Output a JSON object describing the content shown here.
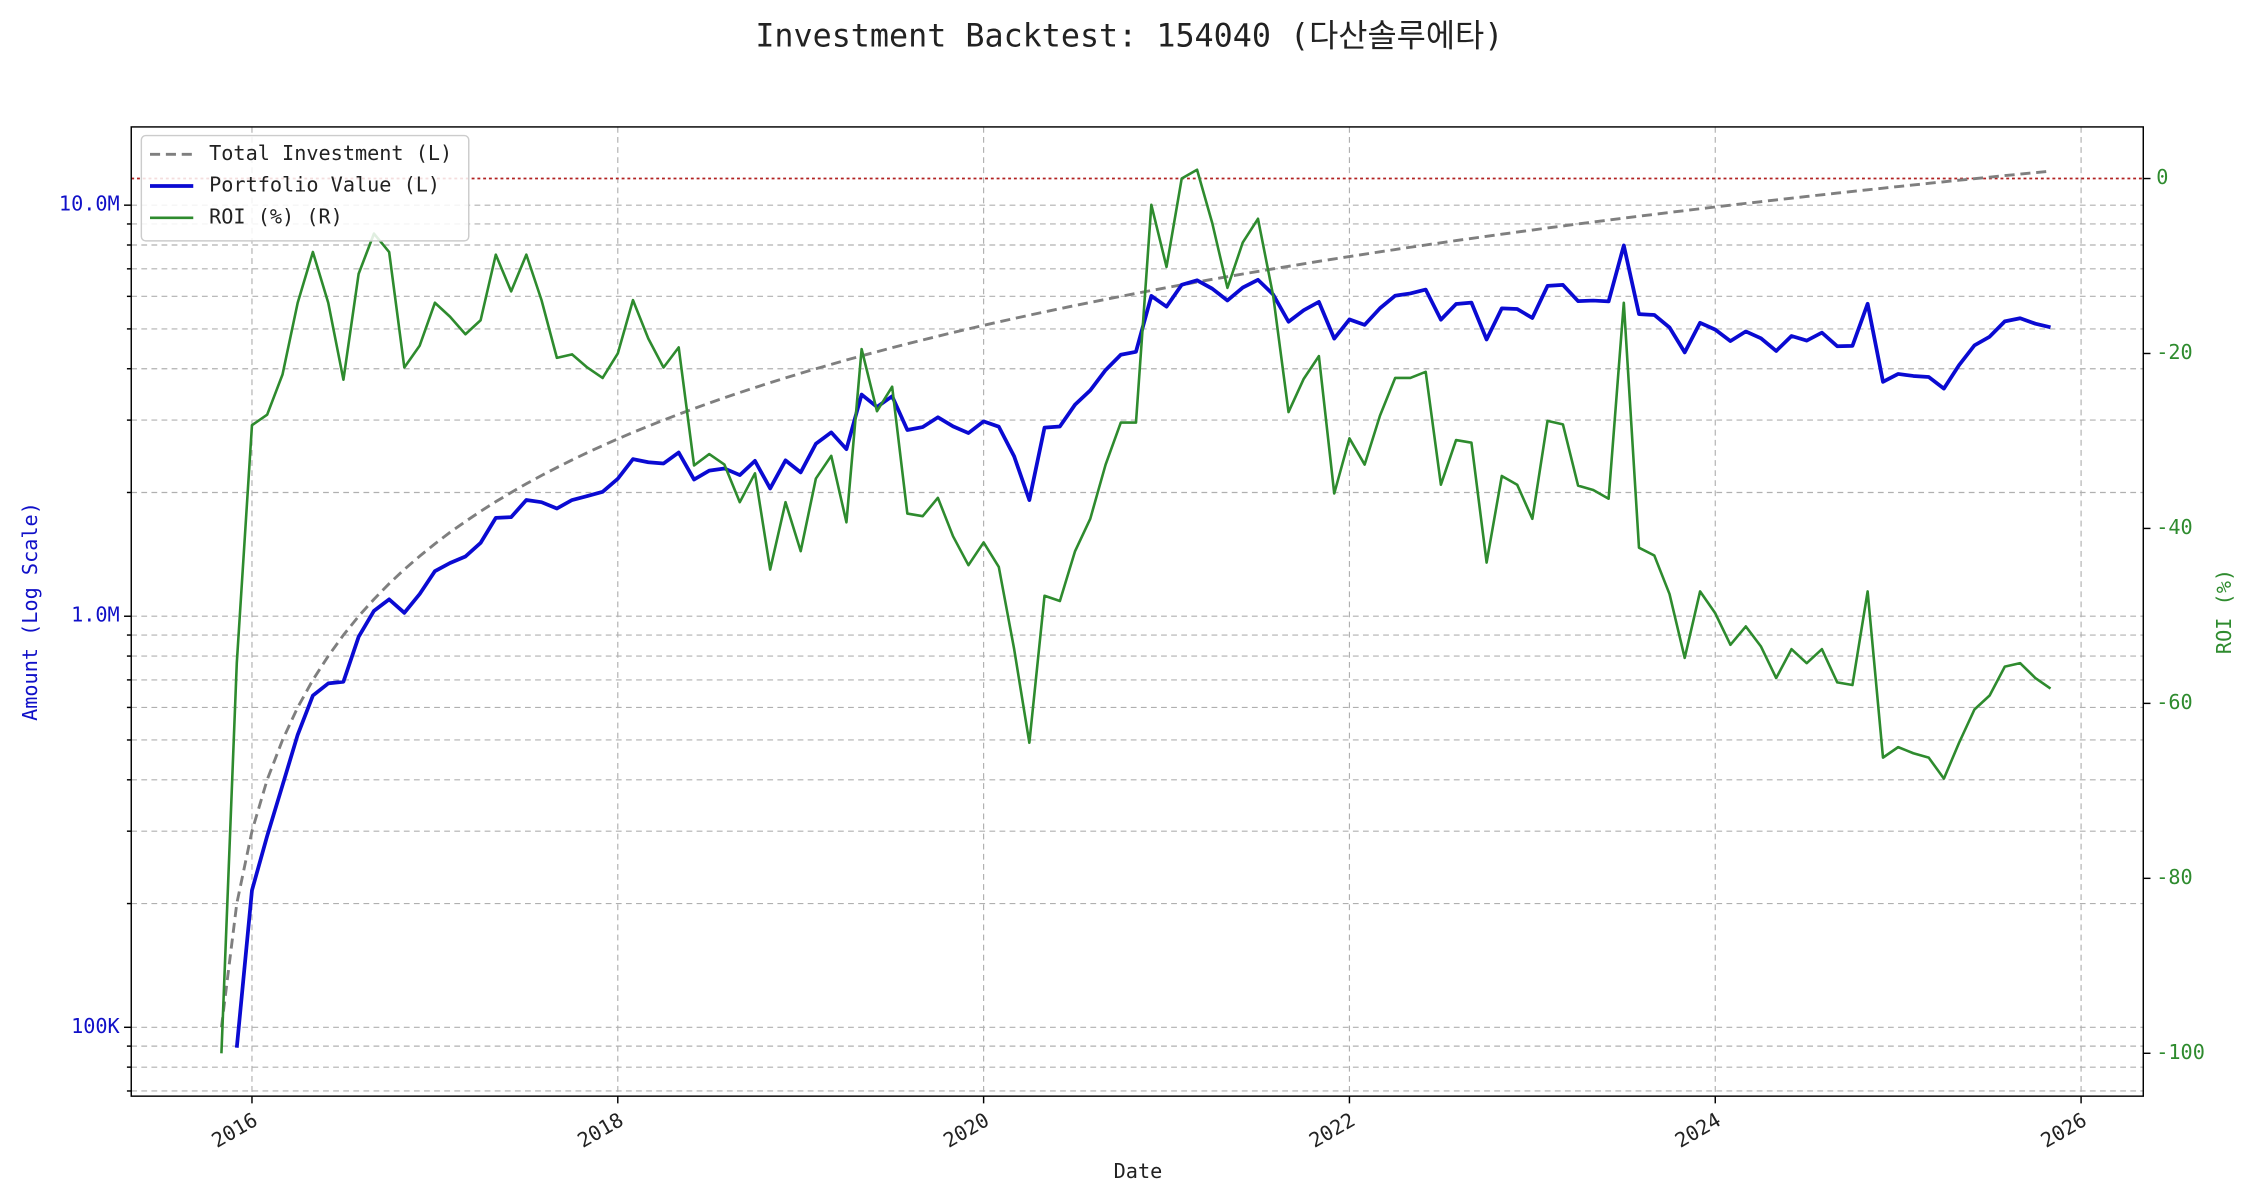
{
  "chart_data": {
    "type": "line",
    "title": "Investment Backtest: 154040 (다산솔루에타)",
    "xlabel": "Date",
    "ylabel": "Amount (Log Scale)",
    "y2label": "ROI (%)",
    "ylog": true,
    "grid": true,
    "legend": "upper left",
    "xlim": [
      2015.34,
      2026.34
    ],
    "xticks": [
      2016,
      2018,
      2020,
      2022,
      2024,
      2026
    ],
    "ylim": [
      68000,
      15500000
    ],
    "yticks": [
      {
        "value": 100000,
        "label": "100K"
      },
      {
        "value": 1000000,
        "label": "1.0M"
      },
      {
        "value": 10000000,
        "label": "10.0M"
      }
    ],
    "yminorticks": [
      70000,
      80000,
      90000,
      200000,
      300000,
      400000,
      500000,
      600000,
      700000,
      800000,
      900000,
      2000000,
      3000000,
      4000000,
      5000000,
      6000000,
      7000000,
      8000000,
      9000000
    ],
    "y2lim": [
      -104.9,
      5.9
    ],
    "y2ticks": [
      -100,
      -80,
      -60,
      -40,
      -20,
      0
    ],
    "hline": {
      "value": 0,
      "axis": "y2",
      "color": "#b22222"
    },
    "x": [
      2015.833,
      2015.917,
      2016.0,
      2016.083,
      2016.167,
      2016.25,
      2016.333,
      2016.417,
      2016.5,
      2016.583,
      2016.667,
      2016.75,
      2016.833,
      2016.917,
      2017.0,
      2017.083,
      2017.167,
      2017.25,
      2017.333,
      2017.417,
      2017.5,
      2017.583,
      2017.667,
      2017.75,
      2017.833,
      2017.917,
      2018.0,
      2018.083,
      2018.167,
      2018.25,
      2018.333,
      2018.417,
      2018.5,
      2018.583,
      2018.667,
      2018.75,
      2018.833,
      2018.917,
      2019.0,
      2019.083,
      2019.167,
      2019.25,
      2019.333,
      2019.417,
      2019.5,
      2019.583,
      2019.667,
      2019.75,
      2019.833,
      2019.917,
      2020.0,
      2020.083,
      2020.167,
      2020.25,
      2020.333,
      2020.417,
      2020.5,
      2020.583,
      2020.667,
      2020.75,
      2020.833,
      2020.917,
      2021.0,
      2021.083,
      2021.167,
      2021.25,
      2021.333,
      2021.417,
      2021.5,
      2021.583,
      2021.667,
      2021.75,
      2021.833,
      2021.917,
      2022.0,
      2022.083,
      2022.167,
      2022.25,
      2022.333,
      2022.417,
      2022.5,
      2022.583,
      2022.667,
      2022.75,
      2022.833,
      2022.917,
      2023.0,
      2023.083,
      2023.167,
      2023.25,
      2023.333,
      2023.417,
      2023.5,
      2023.583,
      2023.667,
      2023.75,
      2023.833,
      2023.917,
      2024.0,
      2024.083,
      2024.167,
      2024.25,
      2024.333,
      2024.417,
      2024.5,
      2024.583,
      2024.667,
      2024.75,
      2024.833,
      2024.917,
      2025.0,
      2025.083,
      2025.167,
      2025.25,
      2025.333,
      2025.417,
      2025.5,
      2025.583,
      2025.667,
      2025.75,
      2025.833
    ],
    "series": [
      {
        "name": "Total Investment (L)",
        "color": "#7f7f7f",
        "dash": "dashed",
        "width": 2,
        "axis": "y",
        "values": [
          100000,
          200000,
          300000,
          400000,
          500000,
          600000,
          700000,
          800000,
          900000,
          1000000,
          1100000,
          1200000,
          1300000,
          1400000,
          1500000,
          1600000,
          1700000,
          1800000,
          1900000,
          2000000,
          2100000,
          2200000,
          2300000,
          2400000,
          2500000,
          2600000,
          2700000,
          2800000,
          2900000,
          3000000,
          3100000,
          3200000,
          3300000,
          3400000,
          3500000,
          3600000,
          3700000,
          3800000,
          3900000,
          4000000,
          4100000,
          4200000,
          4300000,
          4400000,
          4500000,
          4600000,
          4700000,
          4800000,
          4900000,
          5000000,
          5100000,
          5200000,
          5300000,
          5400000,
          5500000,
          5600000,
          5700000,
          5800000,
          5900000,
          6000000,
          6100000,
          6200000,
          6300000,
          6400000,
          6500000,
          6600000,
          6700000,
          6800000,
          6900000,
          7000000,
          7100000,
          7200000,
          7300000,
          7400000,
          7500000,
          7600000,
          7700000,
          7800000,
          7900000,
          8000000,
          8100000,
          8200000,
          8300000,
          8400000,
          8500000,
          8600000,
          8700000,
          8800000,
          8900000,
          9000000,
          9100000,
          9200000,
          9300000,
          9400000,
          9500000,
          9600000,
          9700000,
          9800000,
          9900000,
          10000000,
          10100000,
          10200000,
          10300000,
          10400000,
          10500000,
          10600000,
          10700000,
          10800000,
          10900000,
          11000000,
          11100000,
          11200000,
          11300000,
          11400000,
          11500000,
          11600000,
          11700000,
          11800000,
          11900000,
          12000000,
          12100000
        ]
      },
      {
        "name": "Portfolio Value (L)",
        "color": "#0a0ad2",
        "dash": "solid",
        "width": 2.6,
        "axis": "y",
        "values": [
          0,
          89200,
          215400,
          292000,
          388000,
          514800,
          641200,
          686400,
          693000,
          891000,
          1030700,
          1099200,
          1019200,
          1132600,
          1287000,
          1347200,
          1397400,
          1508400,
          1734700,
          1742000,
          1917300,
          1894200,
          1828500,
          1917600,
          1960000,
          2007200,
          2160000,
          2410800,
          2369300,
          2352000,
          2501700,
          2150400,
          2260500,
          2288200,
          2205000,
          2386800,
          2046100,
          2394000,
          2238600,
          2628000,
          2800300,
          2549400,
          3461500,
          3229600,
          3429000,
          2838200,
          2885800,
          3048000,
          2895900,
          2790000,
          2978400,
          2891200,
          2448600,
          1917000,
          2876500,
          2895200,
          3271800,
          3543800,
          3970700,
          4326000,
          4398100,
          6014000,
          5663700,
          6400000,
          6565000,
          6263400,
          5862500,
          6303600,
          6582600,
          6062000,
          5204300,
          5551200,
          5818100,
          4736000,
          5272500,
          5114800,
          5613300,
          6021600,
          6098800,
          6232000,
          5265000,
          5748200,
          5793400,
          4712400,
          5610000,
          5590000,
          5315700,
          6362400,
          6399100,
          5841000,
          5860400,
          5832800,
          7979400,
          5433200,
          5405500,
          5040000,
          4384400,
          5174400,
          4979700,
          4670000,
          4928800,
          4743000,
          4418700,
          4804800,
          4683000,
          4897200,
          4536800,
          4546800,
          5755200,
          3718000,
          3885000,
          3841600,
          3819400,
          3579600,
          4082500,
          4558800,
          4785300,
          5215600,
          5307400,
          5148000,
          5045700
        ]
      },
      {
        "name": "ROI (%) (R)",
        "color": "#2e8b2e",
        "dash": "solid",
        "width": 1.8,
        "axis": "y2",
        "values": [
          -100,
          -55.4,
          -28.2,
          -27,
          -22.4,
          -14.2,
          -8.4,
          -14.2,
          -23,
          -10.9,
          -6.3,
          -8.4,
          -21.6,
          -19.1,
          -14.2,
          -15.8,
          -17.8,
          -16.2,
          -8.7,
          -12.9,
          -8.7,
          -13.9,
          -20.5,
          -20.1,
          -21.6,
          -22.8,
          -20,
          -13.9,
          -18.3,
          -21.6,
          -19.3,
          -32.8,
          -31.5,
          -32.7,
          -37,
          -33.7,
          -44.7,
          -37,
          -42.6,
          -34.3,
          -31.7,
          -39.3,
          -19.5,
          -26.6,
          -23.8,
          -38.3,
          -38.6,
          -36.5,
          -40.9,
          -44.2,
          -41.6,
          -44.4,
          -53.8,
          -64.5,
          -47.7,
          -48.3,
          -42.6,
          -38.9,
          -32.7,
          -27.9,
          -27.9,
          -3,
          -10.1,
          0,
          1,
          -5.1,
          -12.5,
          -7.3,
          -4.6,
          -13.4,
          -26.7,
          -22.9,
          -20.3,
          -36,
          -29.7,
          -32.7,
          -27.1,
          -22.8,
          -22.8,
          -22.1,
          -35,
          -29.9,
          -30.2,
          -43.9,
          -34,
          -35,
          -38.9,
          -27.7,
          -28.1,
          -35.1,
          -35.6,
          -36.6,
          -14.2,
          -42.2,
          -43.1,
          -47.5,
          -54.8,
          -47.2,
          -49.7,
          -53.3,
          -51.2,
          -53.5,
          -57.1,
          -53.8,
          -55.4,
          -53.8,
          -57.6,
          -57.9,
          -47.2,
          -66.2,
          -65,
          -65.7,
          -66.2,
          -68.6,
          -64.5,
          -60.7,
          -59.1,
          -55.8,
          -55.4,
          -57.1,
          -58.3
        ]
      }
    ]
  }
}
